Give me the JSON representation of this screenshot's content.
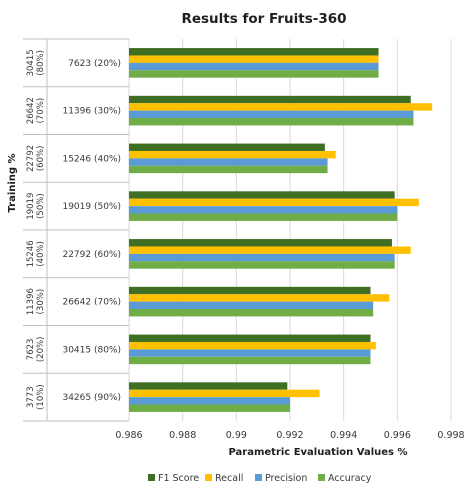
{
  "chart_data": {
    "type": "bar",
    "orientation": "horizontal",
    "title": "Results for Fruits-360",
    "xlabel": "Parametric Evaluation Values %",
    "ylabel": "Training %",
    "xlim": [
      0.986,
      0.998
    ],
    "x_ticks": [
      "0.986",
      "0.988",
      "0.99",
      "0.992",
      "0.994",
      "0.996",
      "0.998"
    ],
    "grid": "vertical",
    "legend_position": "bottom",
    "groups": [
      {
        "outer_line1": "30415",
        "outer_line2": "(80%)",
        "label": "7623 (20%)"
      },
      {
        "outer_line1": "26642",
        "outer_line2": "(70%)",
        "label": "11396 (30%)"
      },
      {
        "outer_line1": "22792",
        "outer_line2": "(60%)",
        "label": "15246 (40%)"
      },
      {
        "outer_line1": "19019",
        "outer_line2": "(50%)",
        "label": "19019 (50%)"
      },
      {
        "outer_line1": "15246",
        "outer_line2": "(40%)",
        "label": "22792 (60%)"
      },
      {
        "outer_line1": "11396",
        "outer_line2": "(30%)",
        "label": "26642 (70%)"
      },
      {
        "outer_line1": "7623",
        "outer_line2": "(20%)",
        "label": "30415 (80%)"
      },
      {
        "outer_line1": "3773",
        "outer_line2": "(10%)",
        "label": "34265 (90%)"
      }
    ],
    "series": [
      {
        "name": "F1 Score",
        "color": "#3f6f23",
        "values": [
          0.9953,
          0.9965,
          0.9933,
          0.9959,
          0.9958,
          0.995,
          0.995,
          0.9919
        ]
      },
      {
        "name": "Recall",
        "color": "#ffc000",
        "values": [
          0.9953,
          0.9973,
          0.9937,
          0.9968,
          0.9965,
          0.9957,
          0.9952,
          0.9931
        ]
      },
      {
        "name": "Precision",
        "color": "#5b9bd5",
        "values": [
          0.9953,
          0.9966,
          0.9934,
          0.996,
          0.9959,
          0.9951,
          0.995,
          0.992
        ]
      },
      {
        "name": "Accuracy",
        "color": "#70ad47",
        "values": [
          0.9953,
          0.9966,
          0.9934,
          0.996,
          0.9959,
          0.9951,
          0.995,
          0.992
        ]
      }
    ]
  }
}
